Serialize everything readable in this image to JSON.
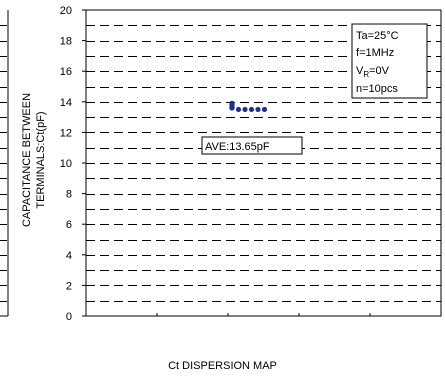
{
  "chart_data": {
    "type": "scatter",
    "title": "Ct DISPERSION MAP",
    "ylabel_line1": "CAPACITANCE BETWEEN",
    "ylabel_line2": "TERMINALS:Ct(pF)",
    "xlabel": "",
    "ylim": [
      0,
      20
    ],
    "y_major_step": 2,
    "y_ticks": [
      "0",
      "2",
      "4",
      "6",
      "8",
      "10",
      "12",
      "14",
      "16",
      "18",
      "20"
    ],
    "grid": "dashed horizontal, minor every 1 pF",
    "conditions": [
      {
        "name": "Ta",
        "sub": "",
        "value": "=25°C"
      },
      {
        "name": "f",
        "sub": "",
        "value": "=1MHz"
      },
      {
        "name": "V",
        "sub": "R",
        "value": "=0V"
      },
      {
        "name": "n",
        "sub": "",
        "value": "=10pcs"
      }
    ],
    "average_label": "AVE:13.65pF",
    "series": [
      {
        "color": "#1f2f8f",
        "values": [
          13.9,
          13.8,
          13.7,
          13.6,
          13.6,
          13.5,
          13.5,
          13.5,
          13.5,
          13.5
        ]
      }
    ]
  }
}
